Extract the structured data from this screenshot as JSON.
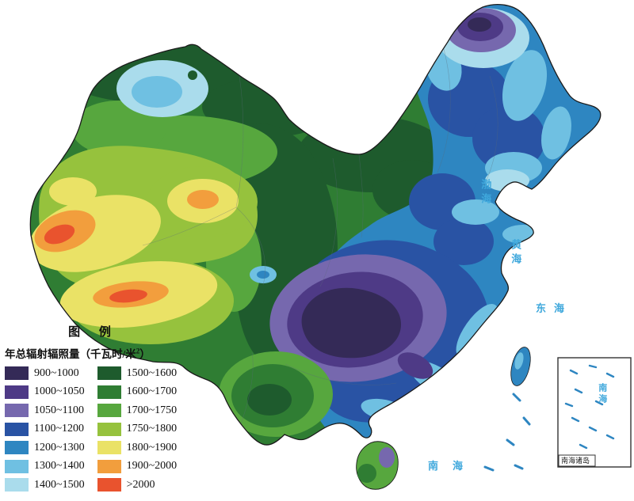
{
  "legend": {
    "title": "图 例",
    "subtitle_prefix": "年总辐射辐照量（千瓦时/米",
    "subtitle_sup": "2",
    "subtitle_suffix": "）",
    "columns": [
      [
        {
          "key": "c900",
          "range": "900~1000",
          "color": "#342a57"
        },
        {
          "key": "c1000",
          "range": "1000~1050",
          "color": "#4e3a86"
        },
        {
          "key": "c1050",
          "range": "1050~1100",
          "color": "#7668ae"
        },
        {
          "key": "c1100",
          "range": "1100~1200",
          "color": "#2953a4"
        },
        {
          "key": "c1200",
          "range": "1200~1300",
          "color": "#2e86c1"
        },
        {
          "key": "c1300",
          "range": "1300~1400",
          "color": "#6fc0e2"
        },
        {
          "key": "c1400",
          "range": "1400~1500",
          "color": "#aadcec"
        }
      ],
      [
        {
          "key": "c1500",
          "range": "1500~1600",
          "color": "#1e5b2d"
        },
        {
          "key": "c1600",
          "range": "1600~1700",
          "color": "#2f7d33"
        },
        {
          "key": "c1700",
          "range": "1700~1750",
          "color": "#57a73e"
        },
        {
          "key": "c1750",
          "range": "1750~1800",
          "color": "#96c23d"
        },
        {
          "key": "c1800",
          "range": "1800~1900",
          "color": "#eae266"
        },
        {
          "key": "c1900",
          "range": "1900~2000",
          "color": "#f29e3d"
        },
        {
          "key": "c2000",
          "range": ">2000",
          "color": "#e9532e"
        }
      ]
    ]
  },
  "map": {
    "sea_label_color": "#3fa8dc",
    "sea_labels": [
      {
        "name": "bohai",
        "text": "渤海"
      },
      {
        "name": "yellow-sea",
        "text": "黄海"
      },
      {
        "name": "east-china-sea",
        "text": "东海"
      },
      {
        "name": "south-china-sea",
        "text": "南海"
      }
    ],
    "inset": {
      "sea_label": "南海",
      "caption": "南海诸岛"
    }
  }
}
